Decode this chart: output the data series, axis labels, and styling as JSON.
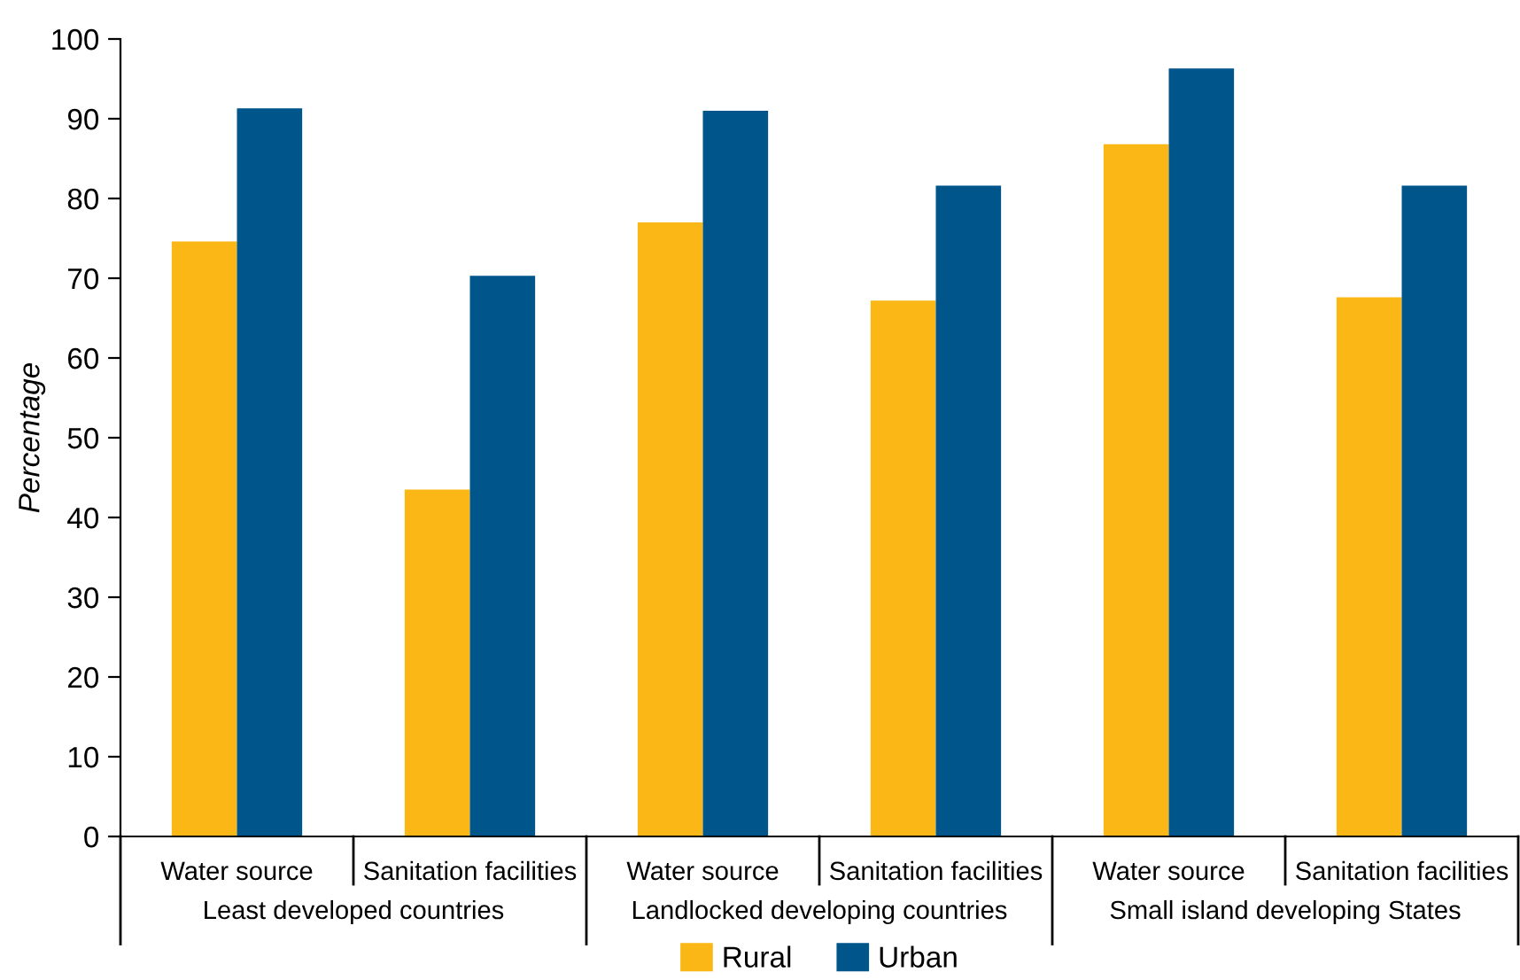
{
  "chart_data": {
    "type": "bar",
    "ylabel": "Percentage",
    "categories": [
      "Water source",
      "Sanitation facilities",
      "Water source",
      "Sanitation facilities",
      "Water source",
      "Sanitation facilities"
    ],
    "series": [
      {
        "name": "Rural",
        "color": "#fbb715",
        "values": [
          74.6,
          43.5,
          77.0,
          67.2,
          86.8,
          67.6
        ]
      },
      {
        "name": "Urban",
        "color": "#00558b",
        "values": [
          91.3,
          70.3,
          91.0,
          81.6,
          96.3,
          81.6
        ]
      }
    ],
    "annotations": [
      "Least developed countries",
      "Landlocked developing countries",
      "Small island developing States"
    ],
    "ylim": [
      0,
      100
    ],
    "yticks": [
      0,
      10,
      20,
      30,
      40,
      50,
      60,
      70,
      80,
      90,
      100
    ],
    "grid": false,
    "legend": "bottom"
  }
}
